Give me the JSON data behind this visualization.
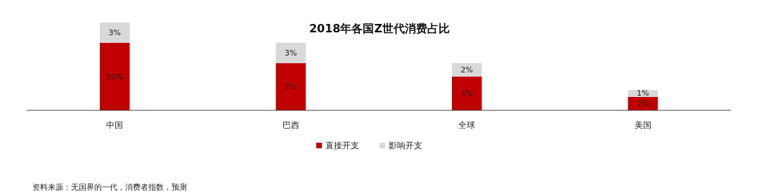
{
  "chart_data": {
    "type": "bar",
    "title": "2018年各国Z世代消费占比",
    "categories": [
      "中国",
      "巴西",
      "全球",
      "美国"
    ],
    "stacked": true,
    "legend": "bottom",
    "grid": false,
    "series": [
      {
        "name": "直接开支",
        "color": "#c00000",
        "values": [
          10,
          7,
          5,
          2
        ],
        "value_labels": [
          "10%",
          "7%",
          "5%",
          "2%"
        ]
      },
      {
        "name": "影响开支",
        "color": "#d9d9d9",
        "values": [
          3,
          3,
          2,
          1
        ],
        "value_labels": [
          "3%",
          "3%",
          "2%",
          "1%"
        ]
      }
    ],
    "annotations": [
      "资料来源：无国界的一代，消费者指数，预测"
    ]
  }
}
